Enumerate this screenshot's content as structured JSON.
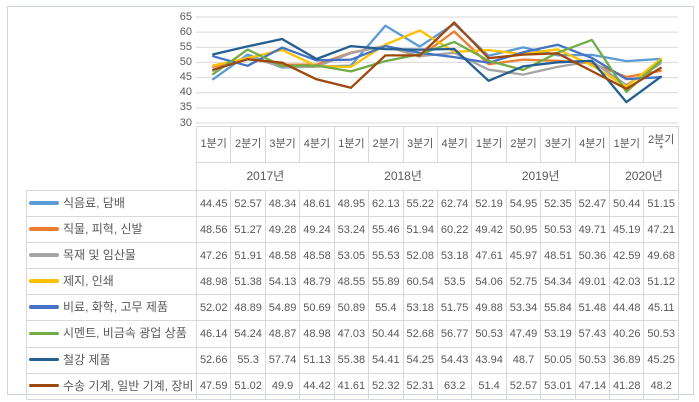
{
  "chart_data": {
    "type": "line",
    "title": "",
    "grid": true,
    "legend_position": "table-left",
    "y_axis": {
      "min": 30,
      "max": 65,
      "step": 5,
      "ticks": [
        65,
        60,
        55,
        50,
        45,
        40,
        35,
        30
      ]
    },
    "x_axis": {
      "year_groups": [
        {
          "label": "2017년",
          "quarters": [
            "1분기",
            "2분기",
            "3분기",
            "4분기"
          ]
        },
        {
          "label": "2018년",
          "quarters": [
            "1분기",
            "2분기",
            "3분기",
            "4분기"
          ]
        },
        {
          "label": "2019년",
          "quarters": [
            "1분기",
            "2분기",
            "3분기",
            "4분기"
          ]
        },
        {
          "label": "2020년",
          "quarters": [
            "1분기",
            "2분기"
          ]
        }
      ],
      "footnote_marker": "*"
    },
    "series": [
      {
        "name": "식음료, 담배",
        "color": "#5B9BD5",
        "values": [
          44.45,
          52.57,
          48.34,
          48.61,
          48.95,
          62.13,
          55.22,
          62.74,
          52.19,
          54.95,
          52.35,
          52.47,
          50.44,
          51.15
        ]
      },
      {
        "name": "직물, 피혁, 신발",
        "color": "#ED7D31",
        "values": [
          48.56,
          51.27,
          49.28,
          49.24,
          53.24,
          55.46,
          51.94,
          60.22,
          49.42,
          50.95,
          50.53,
          49.71,
          45.19,
          47.21
        ]
      },
      {
        "name": "목재 및 임산물",
        "color": "#A5A5A5",
        "values": [
          47.26,
          51.91,
          48.58,
          48.58,
          53.05,
          55.53,
          52.08,
          53.18,
          47.61,
          45.97,
          48.51,
          50.36,
          42.59,
          49.68
        ]
      },
      {
        "name": "제지, 인쇄",
        "color": "#FFC000",
        "values": [
          48.98,
          51.38,
          54.13,
          48.79,
          48.55,
          55.89,
          60.54,
          53.5,
          54.06,
          52.75,
          54.34,
          49.01,
          42.03,
          51.12
        ]
      },
      {
        "name": "비료, 화학, 고무 제품",
        "color": "#4472C4",
        "values": [
          52.02,
          48.89,
          54.89,
          50.69,
          50.89,
          55.4,
          53.18,
          51.75,
          49.88,
          53.34,
          55.84,
          51.48,
          44.48,
          45.11
        ]
      },
      {
        "name": "시멘트, 비금속 광업 상품",
        "color": "#70AD47",
        "values": [
          46.14,
          54.24,
          48.87,
          48.98,
          47.03,
          50.44,
          52.68,
          56.77,
          50.53,
          47.49,
          53.19,
          57.43,
          40.26,
          50.53
        ]
      },
      {
        "name": "철강 제품",
        "color": "#255E91",
        "values": [
          52.66,
          55.3,
          57.74,
          51.13,
          55.38,
          54.41,
          54.25,
          54.43,
          43.94,
          48.7,
          50.05,
          50.53,
          36.89,
          45.25
        ]
      },
      {
        "name": "수송 기계, 일반 기계, 장비",
        "color": "#9E480E",
        "values": [
          47.59,
          51.02,
          49.9,
          44.42,
          41.61,
          52.32,
          52.31,
          63.2,
          51.4,
          52.57,
          53.01,
          47.14,
          41.28,
          48.2
        ]
      }
    ],
    "colors": {
      "grid_line": "#D9D9D9",
      "table_border": "#D9D9D9",
      "text": "#595959",
      "frame_border": "#CCD4E2"
    }
  }
}
